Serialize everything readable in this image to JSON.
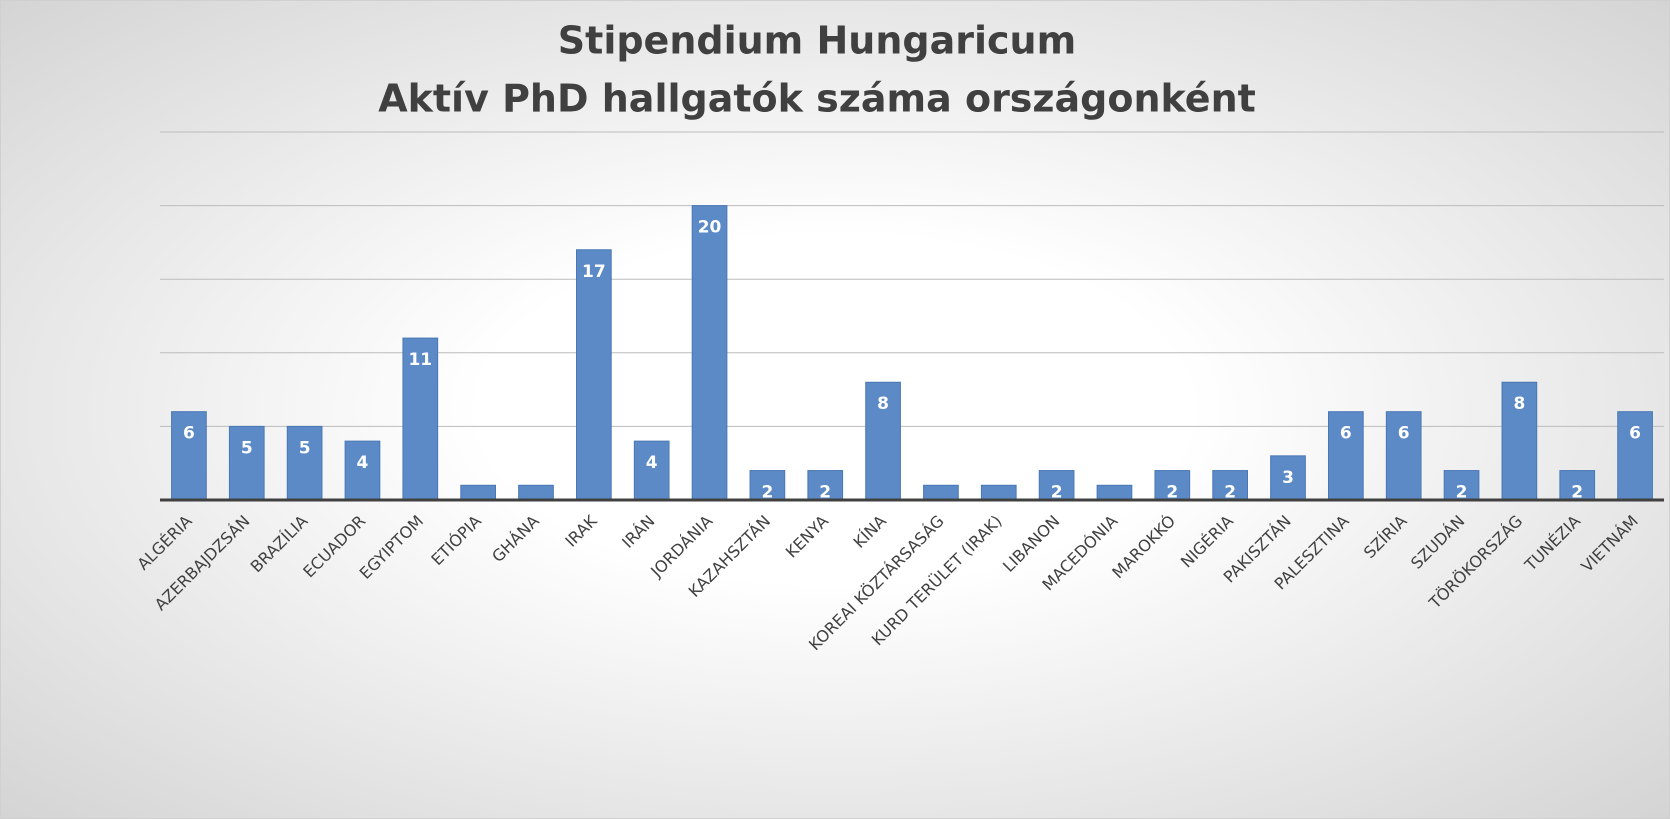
{
  "chart_data": {
    "type": "bar",
    "title": "Stipendium Hungaricum",
    "subtitle": "Aktív PhD hallgatók száma országonként",
    "categories": [
      "ALGÉRIA",
      "AZERBAJDZSÁN",
      "BRAZÍLIA",
      "ECUADOR",
      "EGYIPTOM",
      "ETIÓPIA",
      "GHÁNA",
      "IRAK",
      "IRÁN",
      "JORDÁNIA",
      "KAZAHSZTÁN",
      "KENYA",
      "KÍNA",
      "KOREAI KÖZTÁRSASÁG",
      "KURD TERÜLET (IRAK)",
      "LIBANON",
      "MACEDÓNIA",
      "MAROKKÓ",
      "NIGÉRIA",
      "PAKISZTÁN",
      "PALESZTINA",
      "SZÍRIA",
      "SZUDÁN",
      "TÖRÖKORSZÁG",
      "TUNÉZIA",
      "VIETNÁM"
    ],
    "values": [
      6,
      5,
      5,
      4,
      11,
      1,
      1,
      17,
      4,
      20,
      2,
      2,
      8,
      1,
      1,
      2,
      1,
      2,
      2,
      3,
      6,
      6,
      2,
      8,
      2,
      6
    ],
    "color": "#5b8ac6",
    "ylim": [
      0,
      25
    ],
    "yticks": [
      0,
      5,
      10,
      15,
      20,
      25
    ],
    "grid": true
  }
}
